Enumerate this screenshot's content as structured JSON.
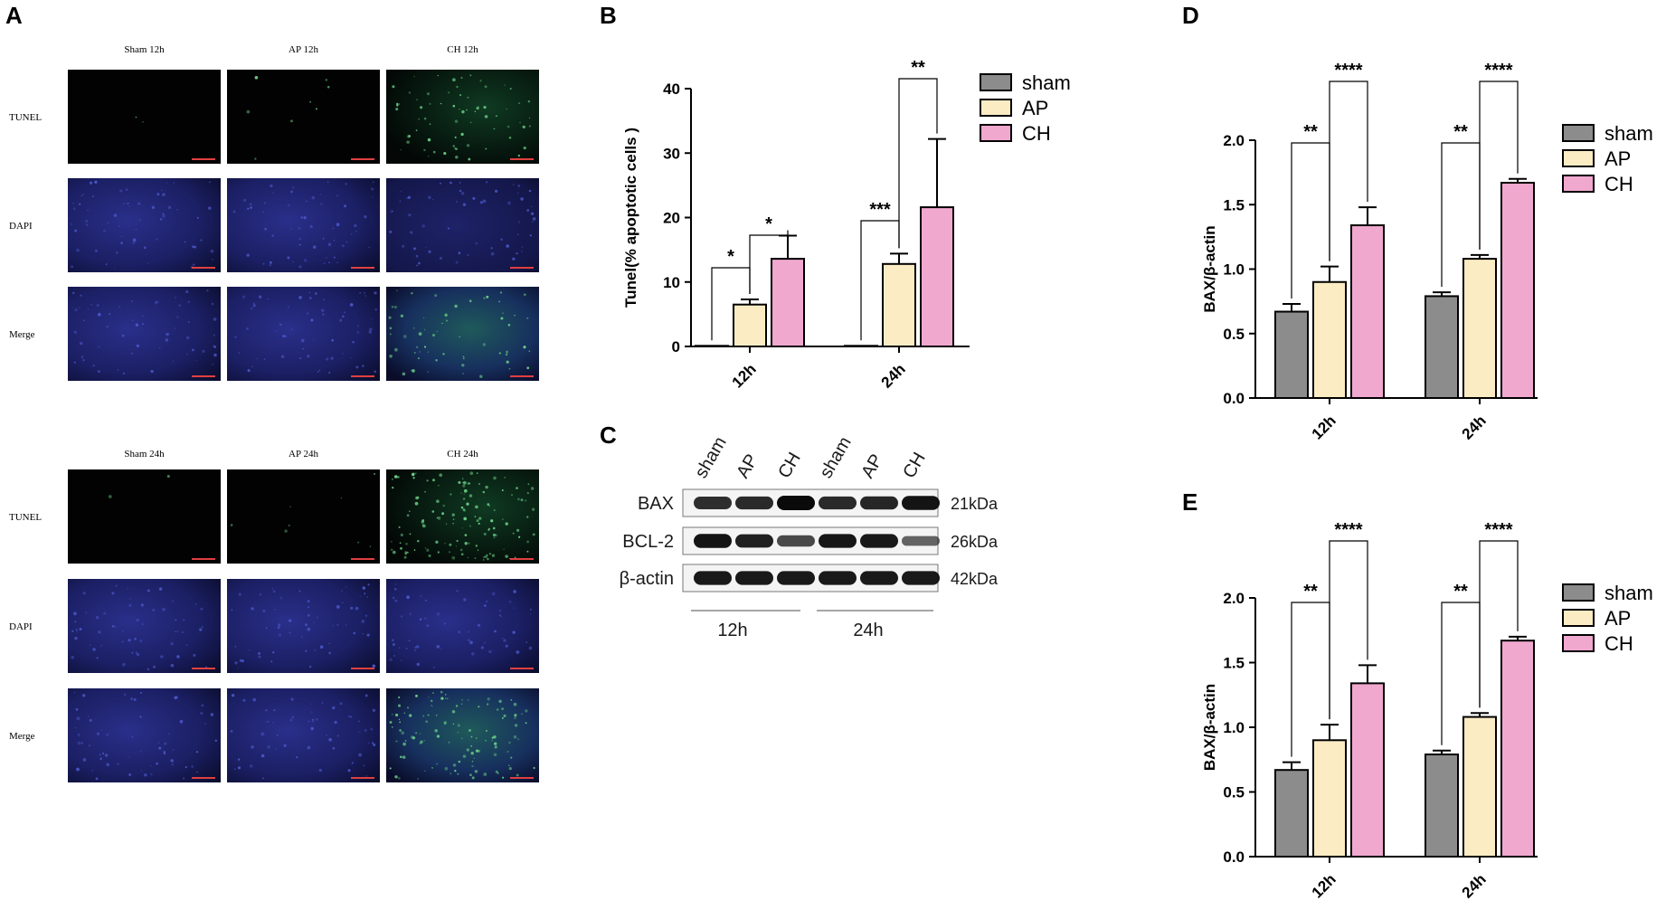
{
  "panels": {
    "A": {
      "letter": "A",
      "blocks": [
        {
          "columns": [
            "Sham 12h",
            "AP 12h",
            "CH 12h"
          ],
          "rows": [
            "TUNEL",
            "DAPI",
            "Merge"
          ]
        },
        {
          "columns": [
            "Sham 24h",
            "AP 24h",
            "CH 24h"
          ],
          "rows": [
            "TUNEL",
            "DAPI",
            "Merge"
          ]
        }
      ]
    },
    "B": {
      "letter": "B"
    },
    "C": {
      "letter": "C",
      "lanes": [
        "sham",
        "AP",
        "CH",
        "sham",
        "AP",
        "CH"
      ],
      "proteins": [
        {
          "name": "BAX",
          "kda": "21kDa",
          "intensity": [
            0.75,
            0.78,
            1.0,
            0.78,
            0.8,
            0.95
          ]
        },
        {
          "name": "BCL-2",
          "kda": "26kDa",
          "intensity": [
            0.95,
            0.85,
            0.55,
            0.92,
            0.9,
            0.35
          ]
        },
        {
          "name": "β-actin",
          "kda": "42kDa",
          "intensity": [
            0.9,
            0.9,
            0.9,
            0.9,
            0.9,
            0.9
          ]
        }
      ],
      "groups": [
        "12h",
        "24h"
      ]
    },
    "D": {
      "letter": "D"
    },
    "E": {
      "letter": "E"
    }
  },
  "colors": {
    "sham": "#8c8c8c",
    "AP": "#fbecc4",
    "CH": "#f0a8cf"
  },
  "chart_data": [
    {
      "panel": "B",
      "type": "bar",
      "categories": [
        "12h",
        "24h"
      ],
      "ylabel": "Tunel(% apoptotic cells )",
      "ylim": [
        0,
        40
      ],
      "yticks": [
        0,
        10,
        20,
        30,
        40
      ],
      "series": [
        {
          "name": "sham",
          "values": [
            0.1,
            0.1
          ],
          "errors": [
            0,
            0
          ]
        },
        {
          "name": "AP",
          "values": [
            6.5,
            12.8
          ],
          "errors": [
            0.8,
            1.6
          ]
        },
        {
          "name": "CH",
          "values": [
            13.6,
            21.6
          ],
          "errors": [
            3.6,
            10.6
          ]
        }
      ],
      "significance": [
        {
          "category": 0,
          "from": 0,
          "to": 1,
          "label": "*"
        },
        {
          "category": 0,
          "from": 1,
          "to": 2,
          "label": "*"
        },
        {
          "category": 1,
          "from": 0,
          "to": 1,
          "label": "***"
        },
        {
          "category": 1,
          "from": 1,
          "to": 2,
          "label": "**"
        }
      ],
      "legend": "top-right"
    },
    {
      "panel": "D",
      "type": "bar",
      "categories": [
        "12h",
        "24h"
      ],
      "ylabel": "BAX/β-actin",
      "ylim": [
        0,
        2.0
      ],
      "yticks": [
        "0.0",
        "0.5",
        "1.0",
        "1.5",
        "2.0"
      ],
      "series": [
        {
          "name": "sham",
          "values": [
            0.67,
            0.79
          ],
          "errors": [
            0.06,
            0.03
          ]
        },
        {
          "name": "AP",
          "values": [
            0.9,
            1.08
          ],
          "errors": [
            0.12,
            0.03
          ]
        },
        {
          "name": "CH",
          "values": [
            1.34,
            1.67
          ],
          "errors": [
            0.14,
            0.03
          ]
        }
      ],
      "significance": [
        {
          "category": 0,
          "from": 0,
          "to": 1,
          "label": "**"
        },
        {
          "category": 0,
          "from": 1,
          "to": 2,
          "label": "****"
        },
        {
          "category": 1,
          "from": 0,
          "to": 1,
          "label": "**"
        },
        {
          "category": 1,
          "from": 1,
          "to": 2,
          "label": "****"
        }
      ],
      "legend": "top-right"
    },
    {
      "panel": "E",
      "type": "bar",
      "categories": [
        "12h",
        "24h"
      ],
      "ylabel": "BAX/β-actin",
      "ylim": [
        0,
        2.0
      ],
      "yticks": [
        "0.0",
        "0.5",
        "1.0",
        "1.5",
        "2.0"
      ],
      "series": [
        {
          "name": "sham",
          "values": [
            0.67,
            0.79
          ],
          "errors": [
            0.06,
            0.03
          ]
        },
        {
          "name": "AP",
          "values": [
            0.9,
            1.08
          ],
          "errors": [
            0.12,
            0.03
          ]
        },
        {
          "name": "CH",
          "values": [
            1.34,
            1.67
          ],
          "errors": [
            0.14,
            0.03
          ]
        }
      ],
      "significance": [
        {
          "category": 0,
          "from": 0,
          "to": 1,
          "label": "**"
        },
        {
          "category": 0,
          "from": 1,
          "to": 2,
          "label": "****"
        },
        {
          "category": 1,
          "from": 0,
          "to": 1,
          "label": "**"
        },
        {
          "category": 1,
          "from": 1,
          "to": 2,
          "label": "****"
        }
      ],
      "legend": "top-right"
    }
  ]
}
